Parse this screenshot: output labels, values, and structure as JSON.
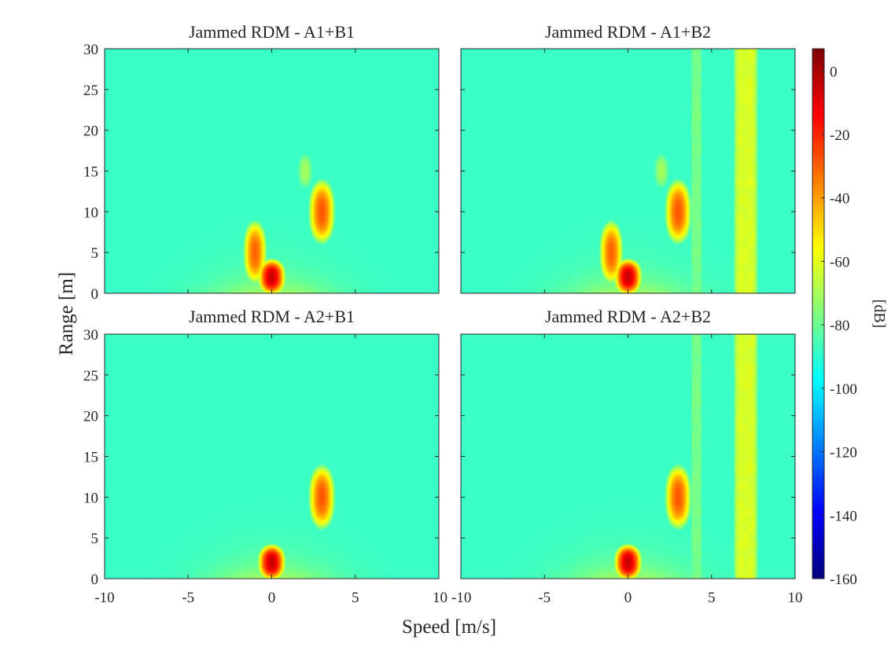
{
  "chart_data": [
    {
      "type": "heatmap",
      "title": "Jammed RDM - A1+B1",
      "xlim": [
        -10,
        10
      ],
      "ylim": [
        0,
        30
      ],
      "xticks": [
        -10,
        -5,
        0,
        5,
        10
      ],
      "yticks": [
        0,
        5,
        10,
        15,
        20,
        25,
        30
      ],
      "targets": [
        {
          "speed": -1,
          "range": 5,
          "peak_db": -30,
          "width": 0.5,
          "height": 3.0
        },
        {
          "speed": 0,
          "range": 2,
          "peak_db": -5,
          "width": 0.5,
          "height": 1.5
        },
        {
          "speed": 3,
          "range": 10,
          "peak_db": -28,
          "width": 0.55,
          "height": 3.0
        },
        {
          "speed": 2,
          "range": 15,
          "peak_db": -70,
          "width": 0.55,
          "height": 2.5
        }
      ],
      "jamming_bands": []
    },
    {
      "type": "heatmap",
      "title": "Jammed RDM - A1+B2",
      "xlim": [
        -10,
        10
      ],
      "ylim": [
        0,
        30
      ],
      "xticks": [
        -10,
        -5,
        0,
        5,
        10
      ],
      "yticks": [
        0,
        5,
        10,
        15,
        20,
        25,
        30
      ],
      "targets": [
        {
          "speed": -1,
          "range": 5,
          "peak_db": -30,
          "width": 0.5,
          "height": 3.0
        },
        {
          "speed": 0,
          "range": 2,
          "peak_db": -5,
          "width": 0.5,
          "height": 1.5
        },
        {
          "speed": 3,
          "range": 10,
          "peak_db": -28,
          "width": 0.55,
          "height": 3.0
        },
        {
          "speed": 2,
          "range": 15,
          "peak_db": -70,
          "width": 0.55,
          "height": 2.5
        }
      ],
      "jamming_bands": [
        {
          "speed_min": 3.8,
          "speed_max": 4.4,
          "level_db": -78
        },
        {
          "speed_min": 6.5,
          "speed_max": 7.6,
          "level_db": -62
        }
      ]
    },
    {
      "type": "heatmap",
      "title": "Jammed RDM - A2+B1",
      "xlim": [
        -10,
        10
      ],
      "ylim": [
        0,
        30
      ],
      "xticks": [
        -10,
        -5,
        0,
        5,
        10
      ],
      "yticks": [
        0,
        5,
        10,
        15,
        20,
        25,
        30
      ],
      "targets": [
        {
          "speed": 0,
          "range": 2,
          "peak_db": -5,
          "width": 0.5,
          "height": 1.5
        },
        {
          "speed": 3,
          "range": 10,
          "peak_db": -28,
          "width": 0.55,
          "height": 3.0
        }
      ],
      "jamming_bands": []
    },
    {
      "type": "heatmap",
      "title": "Jammed RDM - A2+B2",
      "xlim": [
        -10,
        10
      ],
      "ylim": [
        0,
        30
      ],
      "xticks": [
        -10,
        -5,
        0,
        5,
        10
      ],
      "yticks": [
        0,
        5,
        10,
        15,
        20,
        25,
        30
      ],
      "targets": [
        {
          "speed": 0,
          "range": 2,
          "peak_db": -5,
          "width": 0.5,
          "height": 1.5
        },
        {
          "speed": 3,
          "range": 10,
          "peak_db": -28,
          "width": 0.55,
          "height": 3.0
        }
      ],
      "jamming_bands": [
        {
          "speed_min": 3.8,
          "speed_max": 4.4,
          "level_db": -78
        },
        {
          "speed_min": 6.5,
          "speed_max": 7.6,
          "level_db": -62
        }
      ]
    }
  ],
  "shared": {
    "xlabel": "Speed [m/s]",
    "ylabel": "Range [m]",
    "noise_floor_db": -105,
    "colorbar": {
      "label": "[dB]",
      "colormap": "jet",
      "range": [
        -160,
        7
      ],
      "ticks": [
        0,
        -20,
        -40,
        -60,
        -80,
        -100,
        -120,
        -140,
        -160
      ]
    }
  }
}
